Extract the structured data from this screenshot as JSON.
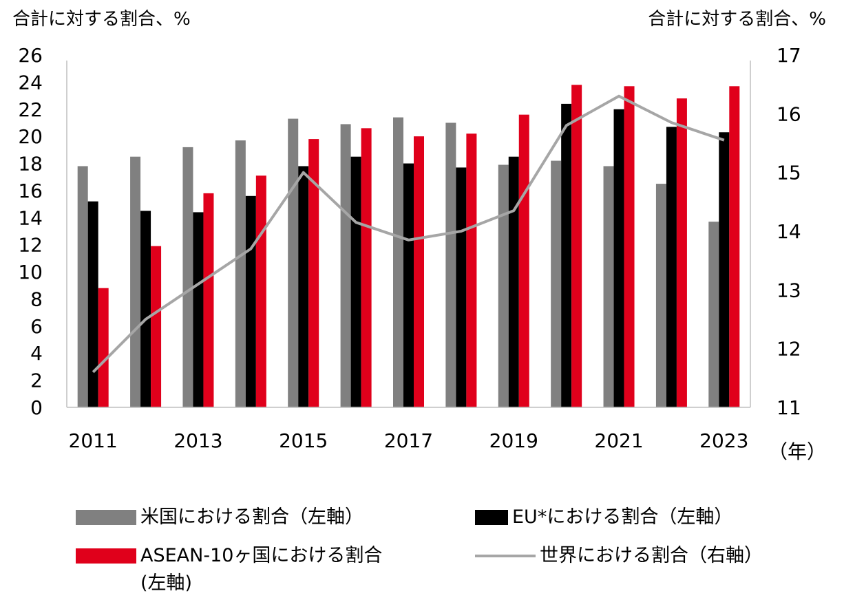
{
  "chart_data": {
    "type": "bar",
    "ylabel_left": "合計に対する割合、%",
    "ylabel_right": "合計に対する割合、%",
    "xlabel": "（年）",
    "x": [
      2011,
      2012,
      2013,
      2014,
      2015,
      2016,
      2017,
      2018,
      2019,
      2020,
      2021,
      2022,
      2023
    ],
    "x_tick_labels": [
      "2011",
      "2013",
      "2015",
      "2017",
      "2019",
      "2021",
      "2023"
    ],
    "y_left": {
      "min": 0,
      "max": 26,
      "step": 2
    },
    "y_right": {
      "min": 11,
      "max": 17,
      "step": 1
    },
    "grid": false,
    "legend_position": "bottom",
    "series": [
      {
        "name": "米国における割合（左軸）",
        "type": "bar",
        "axis": "left",
        "color": "#808080",
        "values": [
          17.8,
          18.5,
          19.2,
          19.7,
          21.3,
          20.9,
          21.4,
          21.0,
          17.9,
          18.2,
          17.8,
          16.5,
          13.7
        ]
      },
      {
        "name": "EU*における割合（左軸）",
        "type": "bar",
        "axis": "left",
        "color": "#000000",
        "values": [
          15.2,
          14.5,
          14.4,
          15.6,
          17.8,
          18.5,
          18.0,
          17.7,
          18.5,
          22.4,
          22.0,
          20.7,
          20.3
        ]
      },
      {
        "name": "ASEAN-10ヶ国における割合\n(左軸)",
        "type": "bar",
        "axis": "left",
        "color": "#e0001b",
        "values": [
          8.8,
          11.9,
          15.8,
          17.1,
          19.8,
          20.6,
          20.0,
          20.2,
          21.6,
          23.8,
          23.7,
          22.8,
          23.7
        ]
      },
      {
        "name": "世界における割合（右軸）",
        "type": "line",
        "axis": "right",
        "color": "#a6a6a6",
        "values": [
          11.6,
          12.5,
          13.1,
          13.7,
          15.0,
          14.15,
          13.85,
          14.0,
          14.35,
          15.8,
          16.3,
          15.85,
          15.55
        ]
      }
    ]
  }
}
